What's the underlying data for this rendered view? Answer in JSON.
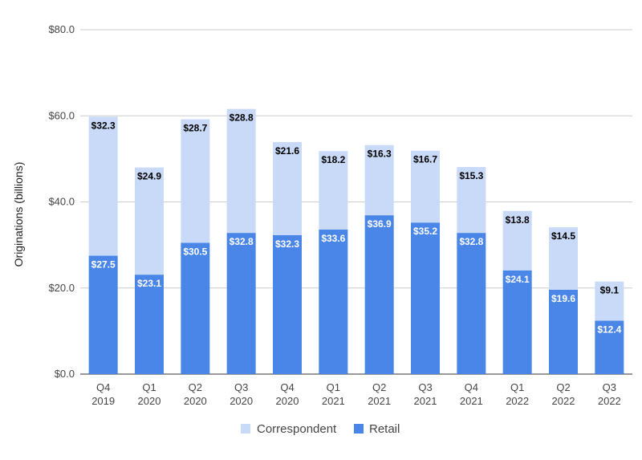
{
  "chart_data": {
    "type": "bar",
    "stacked": true,
    "title": "",
    "xlabel": "",
    "ylabel": "Originations (billions)",
    "ylim": [
      0,
      80
    ],
    "yticks": [
      "$0.0",
      "$20.0",
      "$40.0",
      "$60.0",
      "$80.0"
    ],
    "ytick_values": [
      0,
      20,
      40,
      60,
      80
    ],
    "categories": [
      [
        "Q4",
        "2019"
      ],
      [
        "Q1",
        "2020"
      ],
      [
        "Q2",
        "2020"
      ],
      [
        "Q3",
        "2020"
      ],
      [
        "Q4",
        "2020"
      ],
      [
        "Q1",
        "2021"
      ],
      [
        "Q2",
        "2021"
      ],
      [
        "Q3",
        "2021"
      ],
      [
        "Q4",
        "2021"
      ],
      [
        "Q1",
        "2022"
      ],
      [
        "Q2",
        "2022"
      ],
      [
        "Q3",
        "2022"
      ]
    ],
    "series": [
      {
        "name": "Retail",
        "color": "#4a86e8",
        "label_color": "#ffffff",
        "values": [
          27.5,
          23.1,
          30.5,
          32.8,
          32.3,
          33.6,
          36.9,
          35.2,
          32.8,
          24.1,
          19.6,
          12.4
        ],
        "labels": [
          "$27.5",
          "$23.1",
          "$30.5",
          "$32.8",
          "$32.3",
          "$33.6",
          "$36.9",
          "$35.2",
          "$32.8",
          "$24.1",
          "$19.6",
          "$12.4"
        ]
      },
      {
        "name": "Correspondent",
        "color": "#c9daf8",
        "label_color": "#000000",
        "values": [
          32.3,
          24.9,
          28.7,
          28.8,
          21.6,
          18.2,
          16.3,
          16.7,
          15.3,
          13.8,
          14.5,
          9.1
        ],
        "labels": [
          "$32.3",
          "$24.9",
          "$28.7",
          "$28.8",
          "$21.6",
          "$18.2",
          "$16.3",
          "$16.7",
          "$15.3",
          "$13.8",
          "$14.5",
          "$9.1"
        ]
      }
    ],
    "legend": {
      "position": "bottom",
      "items": [
        {
          "name": "Correspondent",
          "color": "#c9daf8"
        },
        {
          "name": "Retail",
          "color": "#4a86e8"
        }
      ]
    },
    "grid": true,
    "gridline_color": "#cccccc"
  }
}
